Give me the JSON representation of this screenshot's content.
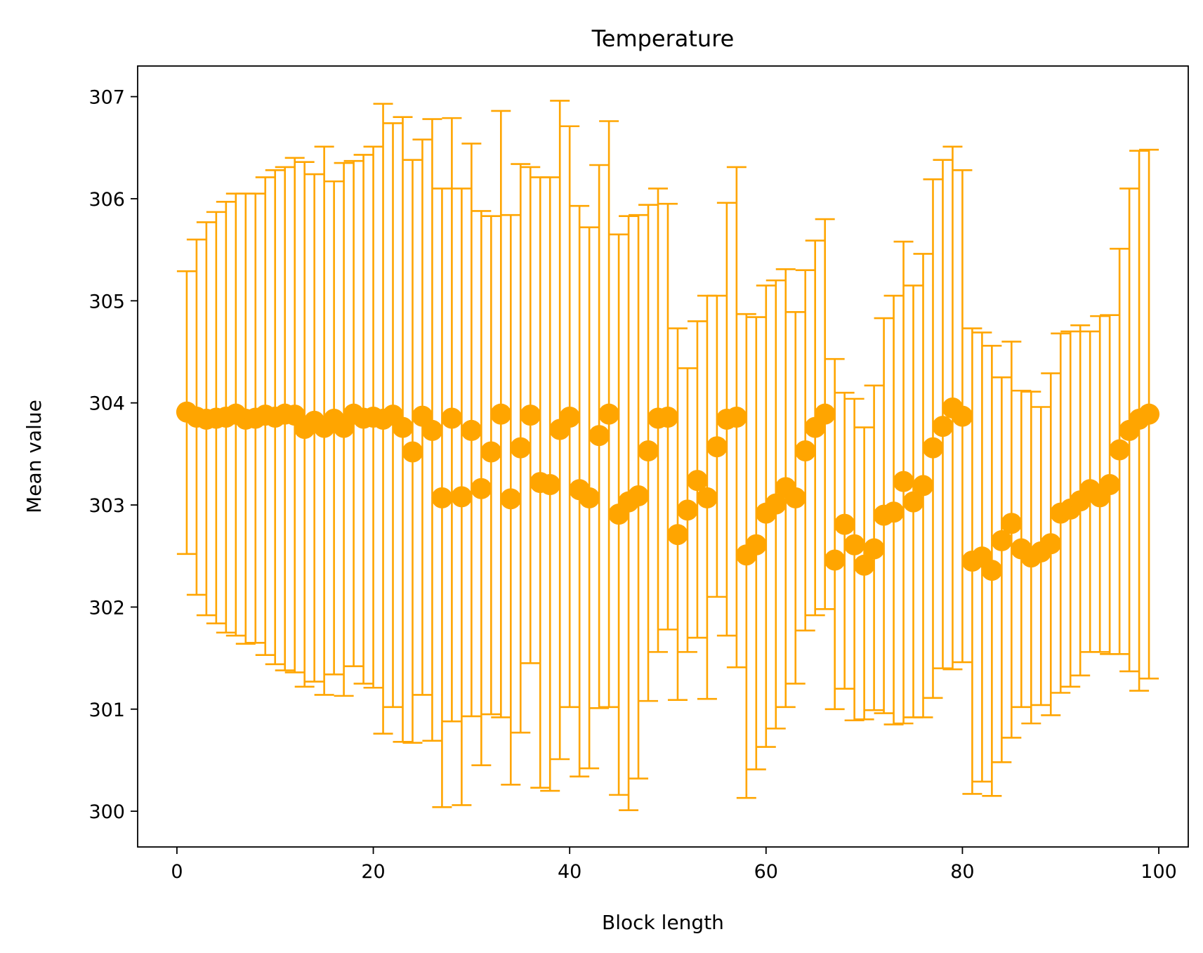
{
  "chart_data": {
    "type": "scatter",
    "title": "Temperature",
    "xlabel": "Block length",
    "ylabel": "Mean value",
    "xlim": [
      -4,
      103
    ],
    "ylim": [
      299.65,
      307.3
    ],
    "xticks": [
      0,
      20,
      40,
      60,
      80,
      100
    ],
    "yticks": [
      300,
      301,
      302,
      303,
      304,
      305,
      306,
      307
    ],
    "grid": false,
    "legend": "none",
    "color": "#ffa500",
    "series": [
      {
        "x": [
          1,
          2,
          3,
          4,
          5,
          6,
          7,
          8,
          9,
          10,
          11,
          12,
          13,
          14,
          15,
          16,
          17,
          18,
          19,
          20,
          21,
          22,
          23,
          24,
          25,
          26,
          27,
          28,
          29,
          30,
          31,
          32,
          33,
          34,
          35,
          36,
          37,
          38,
          39,
          40,
          41,
          42,
          43,
          44,
          45,
          46,
          47,
          48,
          49,
          50,
          51,
          52,
          53,
          54,
          55,
          56,
          57,
          58,
          59,
          60,
          61,
          62,
          63,
          64,
          65,
          66,
          67,
          68,
          69,
          70,
          71,
          72,
          73,
          74,
          75,
          76,
          77,
          78,
          79,
          80,
          81,
          82,
          83,
          84,
          85,
          86,
          87,
          88,
          89,
          90,
          91,
          92,
          93,
          94,
          95,
          96,
          97,
          98,
          99
        ],
        "y": [
          303.91,
          303.86,
          303.84,
          303.85,
          303.86,
          303.89,
          303.84,
          303.85,
          303.88,
          303.86,
          303.89,
          303.88,
          303.75,
          303.82,
          303.76,
          303.84,
          303.76,
          303.89,
          303.85,
          303.86,
          303.84,
          303.88,
          303.76,
          303.52,
          303.87,
          303.73,
          303.07,
          303.85,
          303.08,
          303.73,
          303.16,
          303.52,
          303.89,
          303.06,
          303.56,
          303.88,
          303.22,
          303.2,
          303.74,
          303.86,
          303.15,
          303.07,
          303.68,
          303.89,
          302.91,
          303.03,
          303.09,
          303.53,
          303.85,
          303.86,
          302.71,
          302.95,
          303.24,
          303.07,
          303.57,
          303.84,
          303.86,
          302.51,
          302.61,
          302.92,
          303.01,
          303.17,
          303.07,
          303.53,
          303.76,
          303.89,
          302.46,
          302.81,
          302.61,
          302.41,
          302.57,
          302.9,
          302.93,
          303.23,
          303.03,
          303.19,
          303.56,
          303.77,
          303.95,
          303.87,
          302.45,
          302.49,
          302.36,
          302.65,
          302.82,
          302.57,
          302.49,
          302.54,
          302.62,
          302.92,
          302.96,
          303.04,
          303.15,
          303.08,
          303.2,
          303.54,
          303.73,
          303.84,
          303.89
        ],
        "upper": [
          305.29,
          305.6,
          305.77,
          305.87,
          305.97,
          306.05,
          306.05,
          306.05,
          306.21,
          306.28,
          306.31,
          306.4,
          306.36,
          306.24,
          306.51,
          306.17,
          306.35,
          306.37,
          306.43,
          306.51,
          306.93,
          306.74,
          306.8,
          306.38,
          306.58,
          306.78,
          306.1,
          306.79,
          306.1,
          306.54,
          305.88,
          305.83,
          306.86,
          305.84,
          306.34,
          306.31,
          306.21,
          306.21,
          306.96,
          306.71,
          305.93,
          305.72,
          306.33,
          306.76,
          305.65,
          305.83,
          305.84,
          305.94,
          306.1,
          305.95,
          304.73,
          304.34,
          304.8,
          305.05,
          305.05,
          305.96,
          306.31,
          304.87,
          304.84,
          305.15,
          305.2,
          305.31,
          304.89,
          305.3,
          305.59,
          305.8,
          304.43,
          304.1,
          304.04,
          303.76,
          304.17,
          304.83,
          305.05,
          305.58,
          305.15,
          305.46,
          306.19,
          306.38,
          306.51,
          306.28,
          304.73,
          304.69,
          304.56,
          304.25,
          304.6,
          304.12,
          304.11,
          303.96,
          304.29,
          304.68,
          304.7,
          304.76,
          304.7,
          304.85,
          304.86,
          305.51,
          306.1,
          306.47,
          306.48
        ],
        "lower": [
          302.52,
          302.12,
          301.92,
          301.84,
          301.75,
          301.72,
          301.64,
          301.65,
          301.53,
          301.44,
          301.38,
          301.36,
          301.22,
          301.27,
          301.14,
          301.34,
          301.13,
          301.42,
          301.25,
          301.21,
          300.76,
          301.02,
          300.68,
          300.67,
          301.14,
          300.69,
          300.04,
          300.88,
          300.06,
          300.93,
          300.45,
          300.95,
          300.92,
          300.26,
          300.77,
          301.45,
          300.23,
          300.2,
          300.51,
          301.02,
          300.34,
          300.42,
          301.01,
          301.02,
          300.16,
          300.01,
          300.32,
          301.08,
          301.56,
          301.78,
          301.09,
          301.56,
          301.7,
          301.1,
          302.1,
          301.72,
          301.41,
          300.13,
          300.41,
          300.63,
          300.81,
          301.02,
          301.25,
          301.77,
          301.92,
          301.98,
          301.0,
          301.2,
          300.89,
          300.9,
          300.99,
          300.96,
          300.85,
          300.86,
          300.92,
          300.92,
          301.11,
          301.4,
          301.39,
          301.46,
          300.17,
          300.29,
          300.15,
          300.48,
          300.72,
          301.02,
          300.86,
          301.04,
          300.94,
          301.16,
          301.22,
          301.33,
          301.56,
          301.56,
          301.54,
          301.54,
          301.37,
          301.18,
          301.3
        ]
      }
    ]
  }
}
